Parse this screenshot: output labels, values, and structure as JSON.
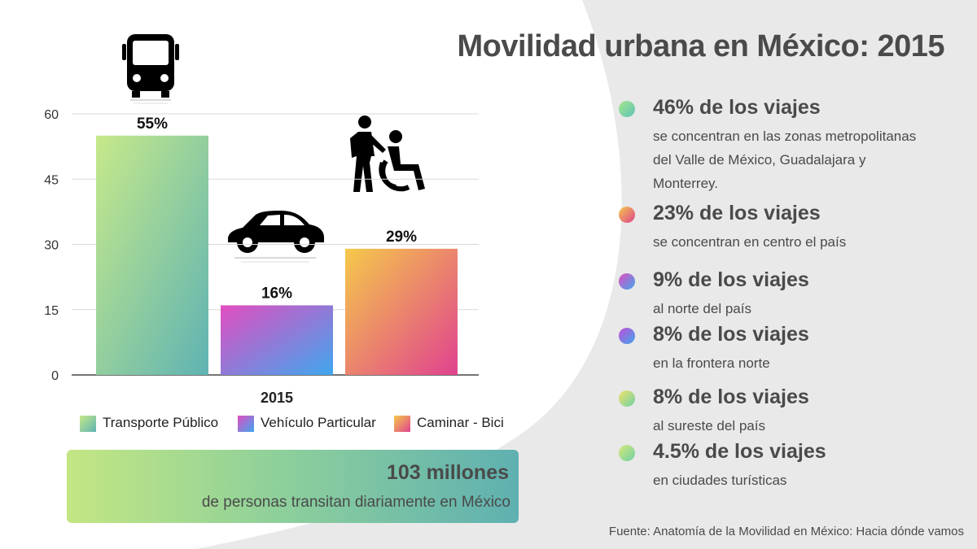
{
  "title": "Movilidad urbana en México: 2015",
  "chart_data": {
    "type": "bar",
    "title": "",
    "categories": [
      "Transporte Público",
      "Vehículo Particular",
      "Caminar - Bici"
    ],
    "values": [
      55,
      16,
      29
    ],
    "data_labels": [
      "55%",
      "16%",
      "29%"
    ],
    "x_tick": "2015",
    "yticks": [
      0,
      15,
      30,
      45,
      60
    ],
    "ylim": [
      0,
      60
    ],
    "grid": true,
    "legend_position": "bottom",
    "series_colors": [
      [
        "#c6e98a",
        "#5fb3b3"
      ],
      [
        "#e24dc0",
        "#3fa7ee"
      ],
      [
        "#f5c94a",
        "#e0428f"
      ]
    ]
  },
  "legend": [
    {
      "label": "Transporte Público"
    },
    {
      "label": "Vehículo Particular"
    },
    {
      "label": "Caminar - Bici"
    }
  ],
  "icons": [
    "bus-icon",
    "car-icon",
    "pedestrian-wheelchair-icon"
  ],
  "stats": [
    {
      "headline": "46% de los viajes",
      "detail": "se concentran en las zonas metropolitanas del Valle de México, Guadalajara y Monterrey.",
      "color": "#7fd1a7"
    },
    {
      "headline": "23% de los viajes",
      "detail": "se concentran en centro el país",
      "color": "#f08a6e"
    },
    {
      "headline": "9% de los viajes",
      "detail": "al norte del país",
      "color": "#9b62e0"
    },
    {
      "headline": "8% de los viajes",
      "detail": "en la frontera norte",
      "color": "#8a6be6"
    },
    {
      "headline": "8% de los viajes",
      "detail": "al sureste del país",
      "color": "#b7e07a"
    },
    {
      "headline": "4.5% de los viajes",
      "detail": "en ciudades turísticas",
      "color": "#a5db8a"
    }
  ],
  "banner": {
    "headline": "103 millones",
    "detail": "de personas transitan diariamente en México"
  },
  "source": "Fuente: Anatomía de la Movilidad en México: Hacia dónde vamos"
}
